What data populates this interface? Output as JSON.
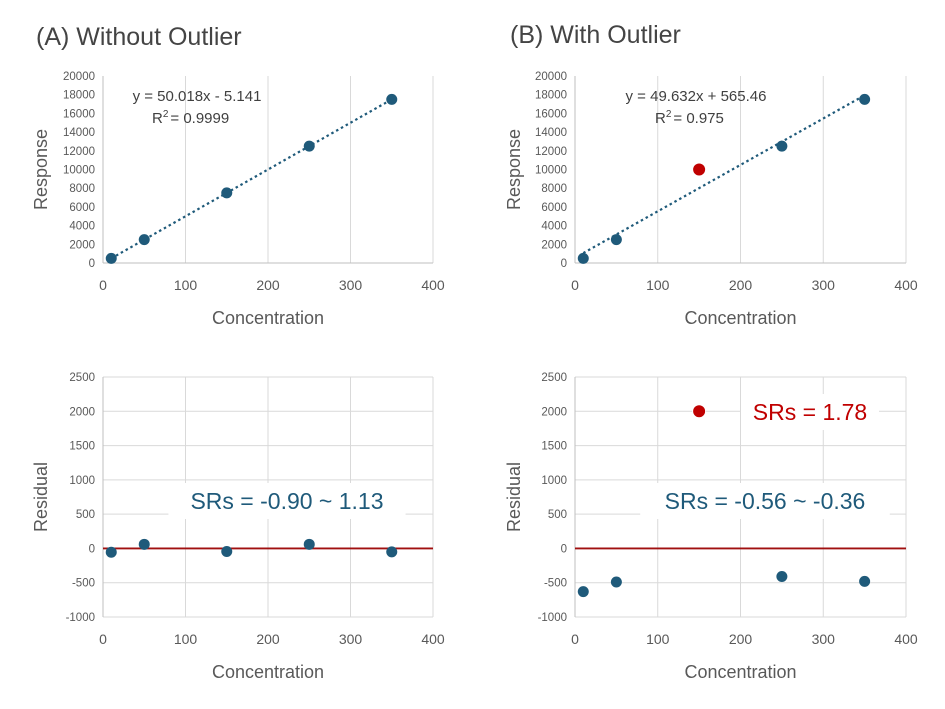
{
  "chart_data": [
    {
      "id": "A_top",
      "type": "scatter",
      "panel_title": "(A) Without Outlier",
      "xlabel": "Concentration",
      "ylabel": "Response",
      "xlim": [
        0,
        400
      ],
      "ylim": [
        0,
        20000
      ],
      "xticks": [
        0,
        100,
        200,
        300,
        400
      ],
      "yticks": [
        0,
        2000,
        4000,
        6000,
        8000,
        10000,
        12000,
        14000,
        16000,
        18000,
        20000
      ],
      "points": [
        {
          "x": 10,
          "y": 495,
          "outlier": false
        },
        {
          "x": 50,
          "y": 2496,
          "outlier": false
        },
        {
          "x": 150,
          "y": 7498,
          "outlier": false
        },
        {
          "x": 250,
          "y": 12500,
          "outlier": false
        },
        {
          "x": 350,
          "y": 17501,
          "outlier": false
        }
      ],
      "trendline": {
        "slope": 50.018,
        "intercept": -5.141,
        "x_range": [
          10,
          350
        ]
      },
      "equation_text": "y = 50.018x - 5.141",
      "r2_text": "= 0.9999",
      "grid": "vertical",
      "colors": {
        "point": "#1F5A7A",
        "trend": "#1F5A7A"
      }
    },
    {
      "id": "B_top",
      "type": "scatter",
      "panel_title": "(B) With Outlier",
      "xlabel": "Concentration",
      "ylabel": "Response",
      "xlim": [
        0,
        400
      ],
      "ylim": [
        0,
        20000
      ],
      "xticks": [
        0,
        100,
        200,
        300,
        400
      ],
      "yticks": [
        0,
        2000,
        4000,
        6000,
        8000,
        10000,
        12000,
        14000,
        16000,
        18000,
        20000
      ],
      "points": [
        {
          "x": 10,
          "y": 495,
          "outlier": false
        },
        {
          "x": 50,
          "y": 2496,
          "outlier": false
        },
        {
          "x": 150,
          "y": 10000,
          "outlier": true
        },
        {
          "x": 250,
          "y": 12500,
          "outlier": false
        },
        {
          "x": 350,
          "y": 17501,
          "outlier": false
        }
      ],
      "trendline": {
        "slope": 49.632,
        "intercept": 565.46,
        "x_range": [
          10,
          350
        ]
      },
      "equation_text": "y = 49.632x + 565.46",
      "r2_text": "= 0.975",
      "grid": "vertical",
      "colors": {
        "point": "#1F5A7A",
        "outlier": "#C00000",
        "trend": "#1F5A7A"
      }
    },
    {
      "id": "A_bottom",
      "type": "scatter",
      "xlabel": "Concentration",
      "ylabel": "Residual",
      "xlim": [
        0,
        400
      ],
      "ylim": [
        -1000,
        2500
      ],
      "xticks": [
        0,
        100,
        200,
        300,
        400
      ],
      "yticks": [
        -1000,
        -500,
        0,
        500,
        1000,
        1500,
        2000,
        2500
      ],
      "points": [
        {
          "x": 10,
          "y": -55,
          "outlier": false
        },
        {
          "x": 50,
          "y": 60,
          "outlier": false
        },
        {
          "x": 150,
          "y": -45,
          "outlier": false
        },
        {
          "x": 250,
          "y": 60,
          "outlier": false
        },
        {
          "x": 350,
          "y": -50,
          "outlier": false
        }
      ],
      "zero_line": true,
      "annotation": "SRs = -0.90 ~ 1.13",
      "grid": "both",
      "colors": {
        "point": "#1F5A7A",
        "zero_line": "#A01010"
      }
    },
    {
      "id": "B_bottom",
      "type": "scatter",
      "xlabel": "Concentration",
      "ylabel": "Residual",
      "xlim": [
        0,
        400
      ],
      "ylim": [
        -1000,
        2500
      ],
      "xticks": [
        0,
        100,
        200,
        300,
        400
      ],
      "yticks": [
        -1000,
        -500,
        0,
        500,
        1000,
        1500,
        2000,
        2500
      ],
      "points": [
        {
          "x": 10,
          "y": -630,
          "outlier": false
        },
        {
          "x": 50,
          "y": -490,
          "outlier": false
        },
        {
          "x": 150,
          "y": 2000,
          "outlier": true
        },
        {
          "x": 250,
          "y": -410,
          "outlier": false
        },
        {
          "x": 350,
          "y": -480,
          "outlier": false
        }
      ],
      "zero_line": true,
      "annotation": "SRs = -0.56 ~ -0.36",
      "outlier_annotation": "SRs = 1.78",
      "grid": "both",
      "colors": {
        "point": "#1F5A7A",
        "outlier": "#C00000",
        "zero_line": "#A01010"
      }
    }
  ]
}
